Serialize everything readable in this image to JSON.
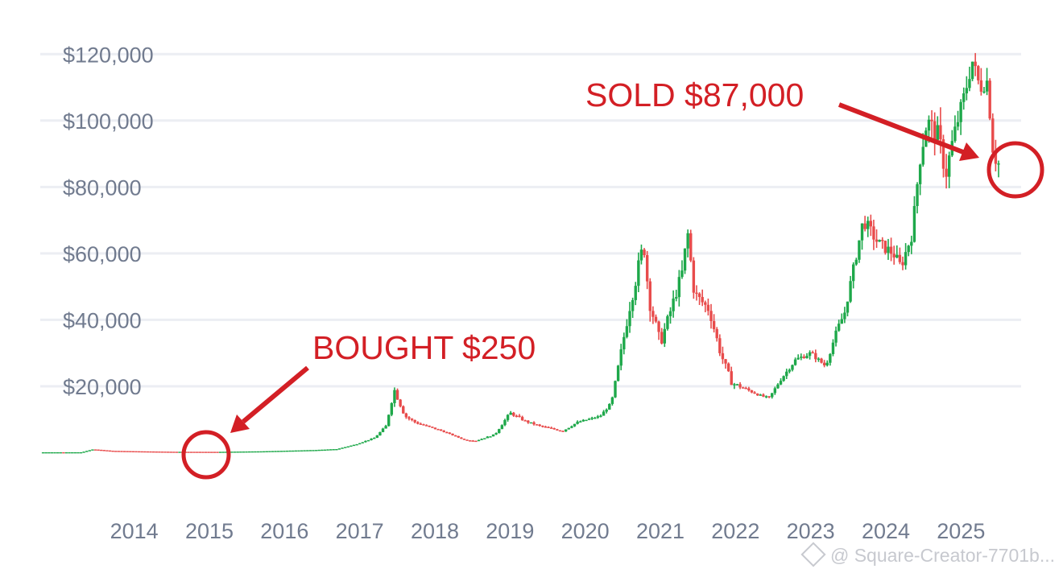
{
  "chart_data": {
    "type": "line",
    "title": "",
    "xlabel": "",
    "ylabel": "",
    "ylim": [
      -12000,
      130000
    ],
    "xlim": [
      2013.25,
      2026.3
    ],
    "grid": true,
    "y_ticks": [
      {
        "value": 20000,
        "label": "$20,000"
      },
      {
        "value": 40000,
        "label": "$40,000"
      },
      {
        "value": 60000,
        "label": "$60,000"
      },
      {
        "value": 80000,
        "label": "$80,000"
      },
      {
        "value": 100000,
        "label": "$100,000"
      },
      {
        "value": 120000,
        "label": "$120,000"
      }
    ],
    "x_ticks": [
      {
        "value": 2014,
        "label": "2014"
      },
      {
        "value": 2015,
        "label": "2015"
      },
      {
        "value": 2016,
        "label": "2016"
      },
      {
        "value": 2017,
        "label": "2017"
      },
      {
        "value": 2018,
        "label": "2018"
      },
      {
        "value": 2019,
        "label": "2019"
      },
      {
        "value": 2020,
        "label": "2020"
      },
      {
        "value": 2021,
        "label": "2021"
      },
      {
        "value": 2022,
        "label": "2022"
      },
      {
        "value": 2023,
        "label": "2023"
      },
      {
        "value": 2024,
        "label": "2024"
      },
      {
        "value": 2025,
        "label": "2025"
      }
    ],
    "series": [
      {
        "up_color": "#1ea84a",
        "down_color": "#e84b4b",
        "x": [
          2013.25,
          2013.8,
          2013.95,
          2014.2,
          2014.6,
          2015.0,
          2015.6,
          2016.2,
          2016.9,
          2017.2,
          2017.45,
          2017.7,
          2017.85,
          2017.96,
          2018.1,
          2018.25,
          2018.6,
          2018.9,
          2019.05,
          2019.3,
          2019.5,
          2019.7,
          2019.9,
          2020.2,
          2020.4,
          2020.7,
          2020.85,
          2021.0,
          2021.1,
          2021.28,
          2021.35,
          2021.5,
          2021.6,
          2021.8,
          2021.86,
          2021.95,
          2022.15,
          2022.3,
          2022.45,
          2022.6,
          2022.85,
          2022.95,
          2023.1,
          2023.3,
          2023.5,
          2023.7,
          2023.85,
          2023.95,
          2024.2,
          2024.4,
          2024.6,
          2024.7,
          2024.85,
          2024.95,
          2025.05,
          2025.2,
          2025.3,
          2025.4,
          2025.55,
          2025.65,
          2025.75,
          2025.85,
          2025.93,
          2026.0
        ],
        "values": [
          120,
          130,
          1000,
          550,
          400,
          280,
          250,
          420,
          800,
          1100,
          2500,
          4500,
          8000,
          19000,
          11000,
          9000,
          6500,
          3800,
          3600,
          5500,
          12000,
          9500,
          8000,
          6500,
          9200,
          11000,
          15000,
          33000,
          45000,
          63000,
          46000,
          33000,
          40000,
          55000,
          67000,
          48000,
          43000,
          30000,
          21000,
          19500,
          17000,
          16500,
          22000,
          28000,
          30000,
          26000,
          37000,
          42000,
          70000,
          63000,
          60000,
          56000,
          66000,
          88000,
          100000,
          95000,
          84000,
          95000,
          108000,
          118000,
          110000,
          112000,
          90000,
          87000
        ],
        "ranges": [
          0.02,
          0.02,
          0.02,
          0.02,
          0.02,
          0.02,
          0.02,
          0.02,
          0.03,
          0.05,
          0.06,
          0.08,
          0.12,
          0.16,
          0.12,
          0.1,
          0.07,
          0.06,
          0.08,
          0.1,
          0.12,
          0.1,
          0.08,
          0.1,
          0.09,
          0.08,
          0.1,
          0.14,
          0.16,
          0.14,
          0.16,
          0.16,
          0.14,
          0.12,
          0.1,
          0.12,
          0.12,
          0.14,
          0.14,
          0.08,
          0.06,
          0.06,
          0.08,
          0.08,
          0.08,
          0.07,
          0.08,
          0.09,
          0.1,
          0.1,
          0.1,
          0.1,
          0.1,
          0.1,
          0.09,
          0.12,
          0.12,
          0.09,
          0.08,
          0.07,
          0.08,
          0.07,
          0.1,
          0.1
        ]
      }
    ],
    "annotations": [
      {
        "id": "bought",
        "text": "BOUGHT $250",
        "x": 2015.5,
        "y": 250
      },
      {
        "id": "sold",
        "text": "SOLD $87,000",
        "x": 2026.0,
        "y": 87000
      }
    ],
    "annotation_color": "#d31f25"
  },
  "watermark": "@ Square-Creator-7701b..."
}
